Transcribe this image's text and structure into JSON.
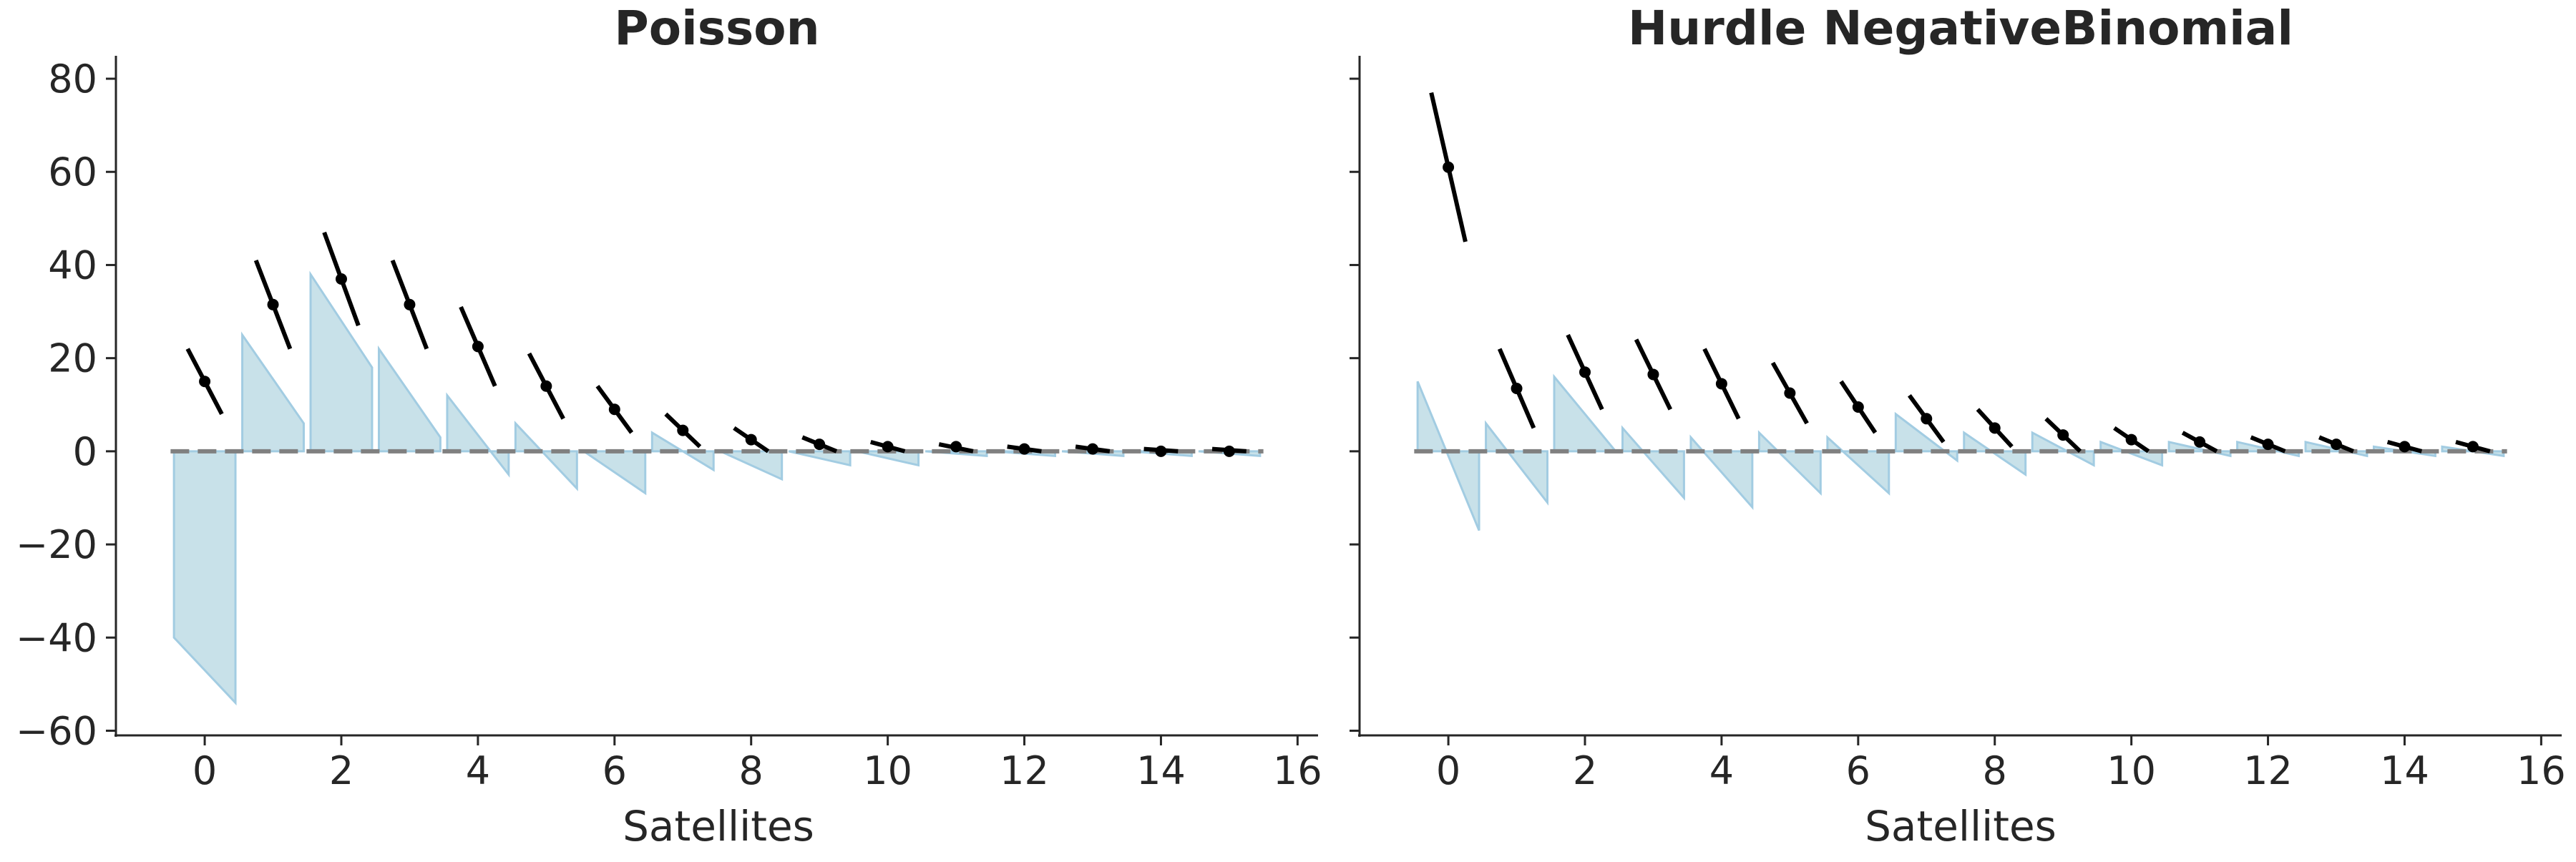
{
  "colors": {
    "observed_bar": "#9ecae1",
    "observed_bar_fill": "#c6e0e8",
    "expected_line": "#000000",
    "zero_line": "#808080",
    "axis": "#262626"
  },
  "chart_data": [
    {
      "type": "rootogram",
      "title": "Poisson",
      "xlabel": "Satellites",
      "ylabel": "",
      "xlim": [
        -1.3,
        16.3
      ],
      "ylim": [
        -61,
        84
      ],
      "xticks": [
        "0",
        "2",
        "4",
        "6",
        "8",
        "10",
        "12",
        "14",
        "16"
      ],
      "yticks": [
        "80",
        "60",
        "40",
        "20",
        "0",
        "−20",
        "−40",
        "−60"
      ],
      "grid": false,
      "counts": [
        0,
        1,
        2,
        3,
        4,
        5,
        6,
        7,
        8,
        9,
        10,
        11,
        12,
        13,
        14,
        15
      ],
      "expected": {
        "center": [
          15,
          31.5,
          37,
          31.5,
          22.5,
          14,
          9,
          4.5,
          2.5,
          1.5,
          1,
          1,
          0.5,
          0.5,
          0,
          0
        ],
        "upper": [
          22,
          41,
          47,
          41,
          31,
          21,
          14,
          8,
          5,
          3,
          2,
          1.5,
          1,
          1,
          0.5,
          0.5
        ],
        "lower": [
          8,
          22,
          27,
          22,
          14,
          7,
          4,
          1,
          0,
          0,
          0,
          0,
          0,
          0,
          0,
          0
        ]
      },
      "residual": {
        "left": [
          -40,
          25,
          38,
          22,
          12,
          6,
          0,
          4,
          0,
          0,
          0,
          0,
          0,
          0,
          0,
          0
        ],
        "right": [
          -54,
          6,
          18,
          3,
          -5,
          -8,
          -9,
          -4,
          -6,
          -3,
          -3,
          -1,
          -1,
          -1,
          -1,
          -1
        ]
      }
    },
    {
      "type": "rootogram",
      "title": "Hurdle NegativeBinomial",
      "xlabel": "Satellites",
      "ylabel": "",
      "xlim": [
        -1.3,
        16.3
      ],
      "ylim": [
        -61,
        84
      ],
      "xticks": [
        "0",
        "2",
        "4",
        "6",
        "8",
        "10",
        "12",
        "14",
        "16"
      ],
      "yticks": [],
      "grid": false,
      "counts": [
        0,
        1,
        2,
        3,
        4,
        5,
        6,
        7,
        8,
        9,
        10,
        11,
        12,
        13,
        14,
        15
      ],
      "expected": {
        "center": [
          61,
          13.5,
          17,
          16.5,
          14.5,
          12.5,
          9.5,
          7,
          5,
          3.5,
          2.5,
          2,
          1.5,
          1.5,
          1,
          1
        ],
        "upper": [
          77,
          22,
          25,
          24,
          22,
          19,
          15,
          12,
          9,
          7,
          5,
          4,
          3,
          3,
          2,
          2
        ],
        "lower": [
          45,
          5,
          9,
          9,
          7,
          6,
          4,
          2,
          1,
          0,
          0,
          0,
          0,
          0,
          0,
          0
        ]
      },
      "residual": {
        "left": [
          15,
          6,
          16,
          5,
          3,
          4,
          3,
          8,
          4,
          4,
          2,
          2,
          2,
          2,
          1,
          1
        ],
        "right": [
          -17,
          -11,
          0,
          -10,
          -12,
          -9,
          -9,
          -2,
          -5,
          -3,
          -3,
          -1,
          -1,
          -1,
          -1,
          -1
        ]
      }
    }
  ]
}
